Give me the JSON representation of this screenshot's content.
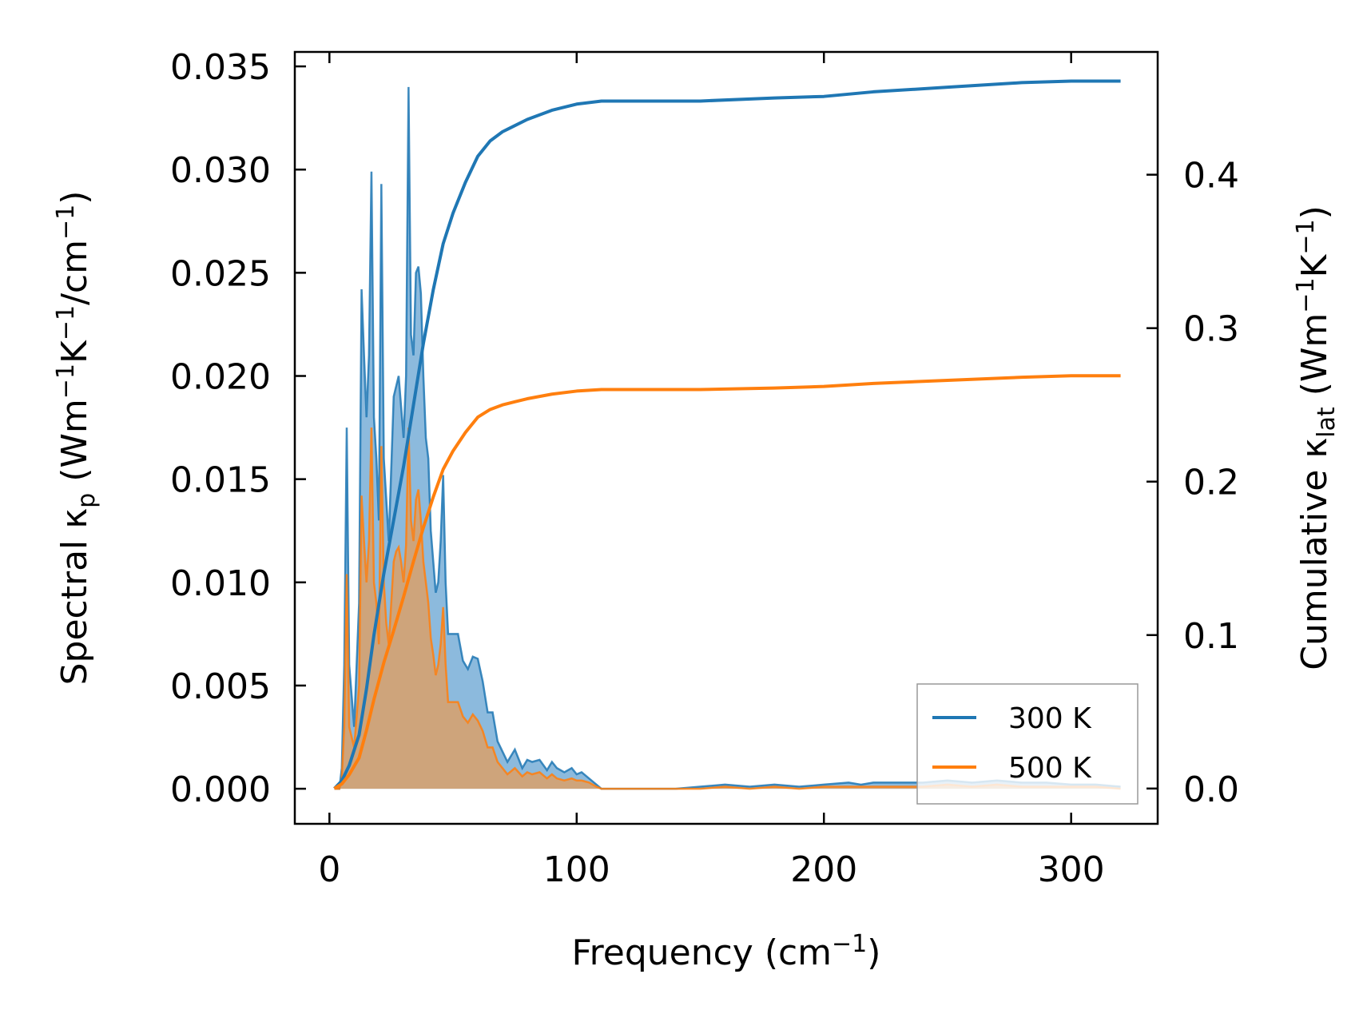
{
  "chart_data": {
    "type": "line",
    "title": "",
    "xlabel": "Frequency (cm⁻¹)",
    "ylabel": "Spectral κₚ (Wm⁻¹K⁻¹/cm⁻¹)",
    "y2label": "Cumulative κₗₐₜ (Wm⁻¹K⁻¹)",
    "xlim": [
      -14,
      335
    ],
    "ylim": [
      -0.0017,
      0.0357
    ],
    "y2lim": [
      -0.023,
      0.48
    ],
    "xticks": [
      0,
      100,
      200,
      300
    ],
    "xtick_labels": [
      "0",
      "100",
      "200",
      "300"
    ],
    "yticks": [
      0.0,
      0.005,
      0.01,
      0.015,
      0.02,
      0.025,
      0.03,
      0.035
    ],
    "ytick_labels": [
      "0.000",
      "0.005",
      "0.010",
      "0.015",
      "0.020",
      "0.025",
      "0.030",
      "0.035"
    ],
    "y2ticks": [
      0.0,
      0.1,
      0.2,
      0.3,
      0.4
    ],
    "y2tick_labels": [
      "0.0",
      "0.1",
      "0.2",
      "0.3",
      "0.4"
    ],
    "legend_position": "lower-right",
    "colors": {
      "300K": "#1f77b4",
      "500K": "#ff7f0e",
      "fill300": "#7fb3d9",
      "fill500": "#d9a06a"
    },
    "series": [
      {
        "name": "300 K",
        "kind": "spectral",
        "color": "#1f77b4",
        "x": [
          2,
          4,
          5,
          6,
          7,
          8,
          10,
          12,
          13,
          14,
          15,
          16,
          17,
          18,
          19,
          20,
          21,
          22,
          23,
          24,
          26,
          27,
          28,
          29,
          30,
          31,
          32,
          33,
          34,
          35,
          36,
          37,
          38,
          39,
          40,
          41,
          42,
          43,
          44,
          45,
          46,
          47,
          48,
          50,
          52,
          54,
          56,
          58,
          60,
          62,
          64,
          66,
          68,
          70,
          72,
          75,
          78,
          80,
          82,
          85,
          88,
          90,
          92,
          95,
          98,
          100,
          102,
          105,
          108,
          110,
          113,
          116,
          120,
          130,
          140,
          150,
          160,
          170,
          180,
          190,
          200,
          210,
          215,
          220,
          230,
          240,
          250,
          260,
          270,
          280,
          290,
          300,
          310,
          320
        ],
        "y": [
          0.0,
          0.0,
          0.001,
          0.006,
          0.0175,
          0.006,
          0.003,
          0.009,
          0.0242,
          0.021,
          0.018,
          0.021,
          0.0299,
          0.018,
          0.016,
          0.013,
          0.0293,
          0.016,
          0.014,
          0.012,
          0.019,
          0.0195,
          0.02,
          0.0185,
          0.017,
          0.02,
          0.034,
          0.022,
          0.021,
          0.025,
          0.0253,
          0.024,
          0.02,
          0.017,
          0.016,
          0.0125,
          0.011,
          0.0095,
          0.01,
          0.012,
          0.0152,
          0.01,
          0.0075,
          0.0075,
          0.0075,
          0.0062,
          0.0058,
          0.0064,
          0.0063,
          0.0052,
          0.0037,
          0.0037,
          0.0023,
          0.0018,
          0.0013,
          0.0019,
          0.001,
          0.0014,
          0.0013,
          0.0014,
          0.0009,
          0.0013,
          0.001,
          0.0008,
          0.001,
          0.0007,
          0.0008,
          0.0005,
          0.0002,
          0.0,
          0.0,
          0.0,
          0.0,
          0.0,
          0.0,
          0.0001,
          0.0002,
          0.0001,
          0.0002,
          0.0001,
          0.0002,
          0.0003,
          0.0002,
          0.0003,
          0.0003,
          0.0003,
          0.0004,
          0.0003,
          0.0004,
          0.0003,
          0.0003,
          0.0002,
          0.0002,
          0.0001
        ]
      },
      {
        "name": "500 K",
        "kind": "spectral",
        "color": "#ff7f0e",
        "x": [
          2,
          4,
          5,
          6,
          7,
          8,
          10,
          12,
          13,
          14,
          15,
          16,
          17,
          18,
          19,
          20,
          21,
          22,
          23,
          24,
          26,
          27,
          28,
          29,
          30,
          31,
          32,
          33,
          34,
          35,
          36,
          37,
          38,
          39,
          40,
          41,
          42,
          43,
          44,
          45,
          46,
          47,
          48,
          50,
          52,
          54,
          56,
          58,
          60,
          62,
          64,
          66,
          68,
          70,
          72,
          75,
          78,
          80,
          82,
          85,
          88,
          90,
          92,
          95,
          98,
          100,
          102,
          105,
          108,
          110,
          113,
          116,
          120,
          130,
          140,
          150,
          160,
          170,
          180,
          190,
          200,
          210,
          215,
          220,
          230,
          240,
          250,
          260,
          270,
          280,
          290,
          300,
          310,
          320
        ],
        "y": [
          0.0,
          0.0,
          0.0005,
          0.003,
          0.0104,
          0.003,
          0.002,
          0.005,
          0.0142,
          0.012,
          0.01,
          0.012,
          0.0175,
          0.01,
          0.009,
          0.007,
          0.0166,
          0.01,
          0.008,
          0.007,
          0.011,
          0.0115,
          0.0117,
          0.011,
          0.01,
          0.0118,
          0.0175,
          0.013,
          0.012,
          0.014,
          0.0145,
          0.013,
          0.011,
          0.01,
          0.009,
          0.0073,
          0.0065,
          0.0055,
          0.006,
          0.007,
          0.0088,
          0.006,
          0.0042,
          0.0042,
          0.0042,
          0.0035,
          0.0032,
          0.0036,
          0.0033,
          0.0028,
          0.002,
          0.002,
          0.0013,
          0.001,
          0.0007,
          0.001,
          0.0006,
          0.0008,
          0.0007,
          0.0008,
          0.0005,
          0.0007,
          0.0005,
          0.0004,
          0.0005,
          0.0004,
          0.0004,
          0.0003,
          0.0001,
          0.0,
          0.0,
          0.0,
          0.0,
          0.0,
          0.0,
          0.0,
          0.0001,
          0.0,
          0.0001,
          0.0,
          0.0001,
          0.0001,
          0.0001,
          0.0001,
          0.0001,
          0.0001,
          0.0002,
          0.0001,
          0.0002,
          0.0001,
          0.0001,
          0.0001,
          0.0001,
          0.0
        ]
      },
      {
        "name": "300 K",
        "kind": "cumulative",
        "color": "#1f77b4",
        "x": [
          2,
          5,
          8,
          12,
          15,
          18,
          22,
          26,
          30,
          34,
          38,
          42,
          46,
          50,
          55,
          60,
          65,
          70,
          75,
          80,
          90,
          100,
          110,
          120,
          150,
          180,
          200,
          220,
          250,
          280,
          300,
          320
        ],
        "y": [
          0.0,
          0.005,
          0.015,
          0.035,
          0.065,
          0.1,
          0.14,
          0.175,
          0.21,
          0.25,
          0.29,
          0.325,
          0.355,
          0.375,
          0.395,
          0.412,
          0.422,
          0.428,
          0.432,
          0.436,
          0.442,
          0.446,
          0.448,
          0.448,
          0.448,
          0.45,
          0.451,
          0.454,
          0.457,
          0.46,
          0.461,
          0.461
        ]
      },
      {
        "name": "500 K",
        "kind": "cumulative",
        "color": "#ff7f0e",
        "x": [
          2,
          5,
          8,
          12,
          15,
          18,
          22,
          26,
          30,
          34,
          38,
          42,
          46,
          50,
          55,
          60,
          65,
          70,
          75,
          80,
          90,
          100,
          110,
          120,
          150,
          180,
          200,
          220,
          250,
          280,
          300,
          320
        ],
        "y": [
          0.0,
          0.003,
          0.009,
          0.02,
          0.038,
          0.058,
          0.082,
          0.103,
          0.125,
          0.148,
          0.17,
          0.19,
          0.208,
          0.22,
          0.232,
          0.242,
          0.247,
          0.25,
          0.252,
          0.254,
          0.257,
          0.259,
          0.26,
          0.26,
          0.26,
          0.261,
          0.262,
          0.264,
          0.266,
          0.268,
          0.269,
          0.269
        ]
      }
    ],
    "legend": [
      "300 K",
      "500 K"
    ]
  }
}
